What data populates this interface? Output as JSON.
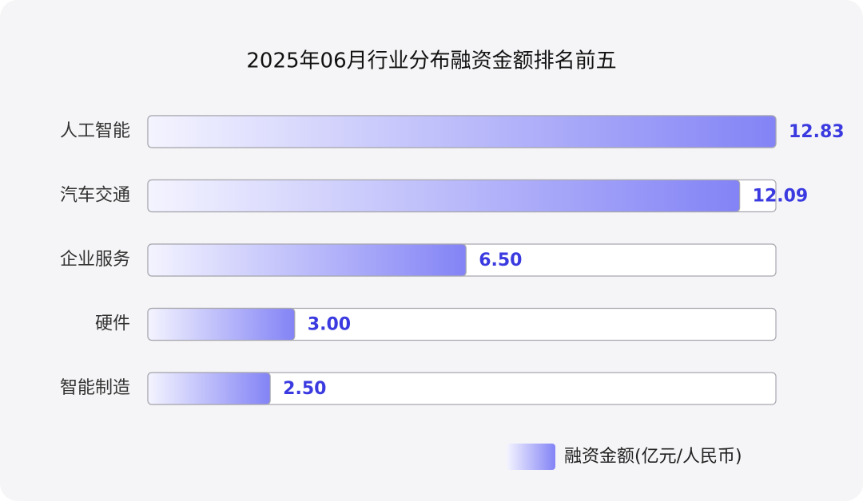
{
  "chart_data": {
    "type": "hbar",
    "title": "2025年06月行业分布融资金额排名前五",
    "categories": [
      "人工智能",
      "汽车交通",
      "企业服务",
      "硬件",
      "智能制造"
    ],
    "series": [
      {
        "name": "融资金额(亿元/人民币)",
        "color": "#8383f6",
        "values": [
          12.83,
          12.09,
          6.5,
          3.0,
          2.5
        ],
        "value_labels": [
          "12.83",
          "12.09",
          "6.50",
          "3.00",
          "2.50"
        ]
      }
    ],
    "xlim": [
      0,
      12.83
    ],
    "label_color": "#3a3ae0",
    "legend": "bottom-right"
  }
}
